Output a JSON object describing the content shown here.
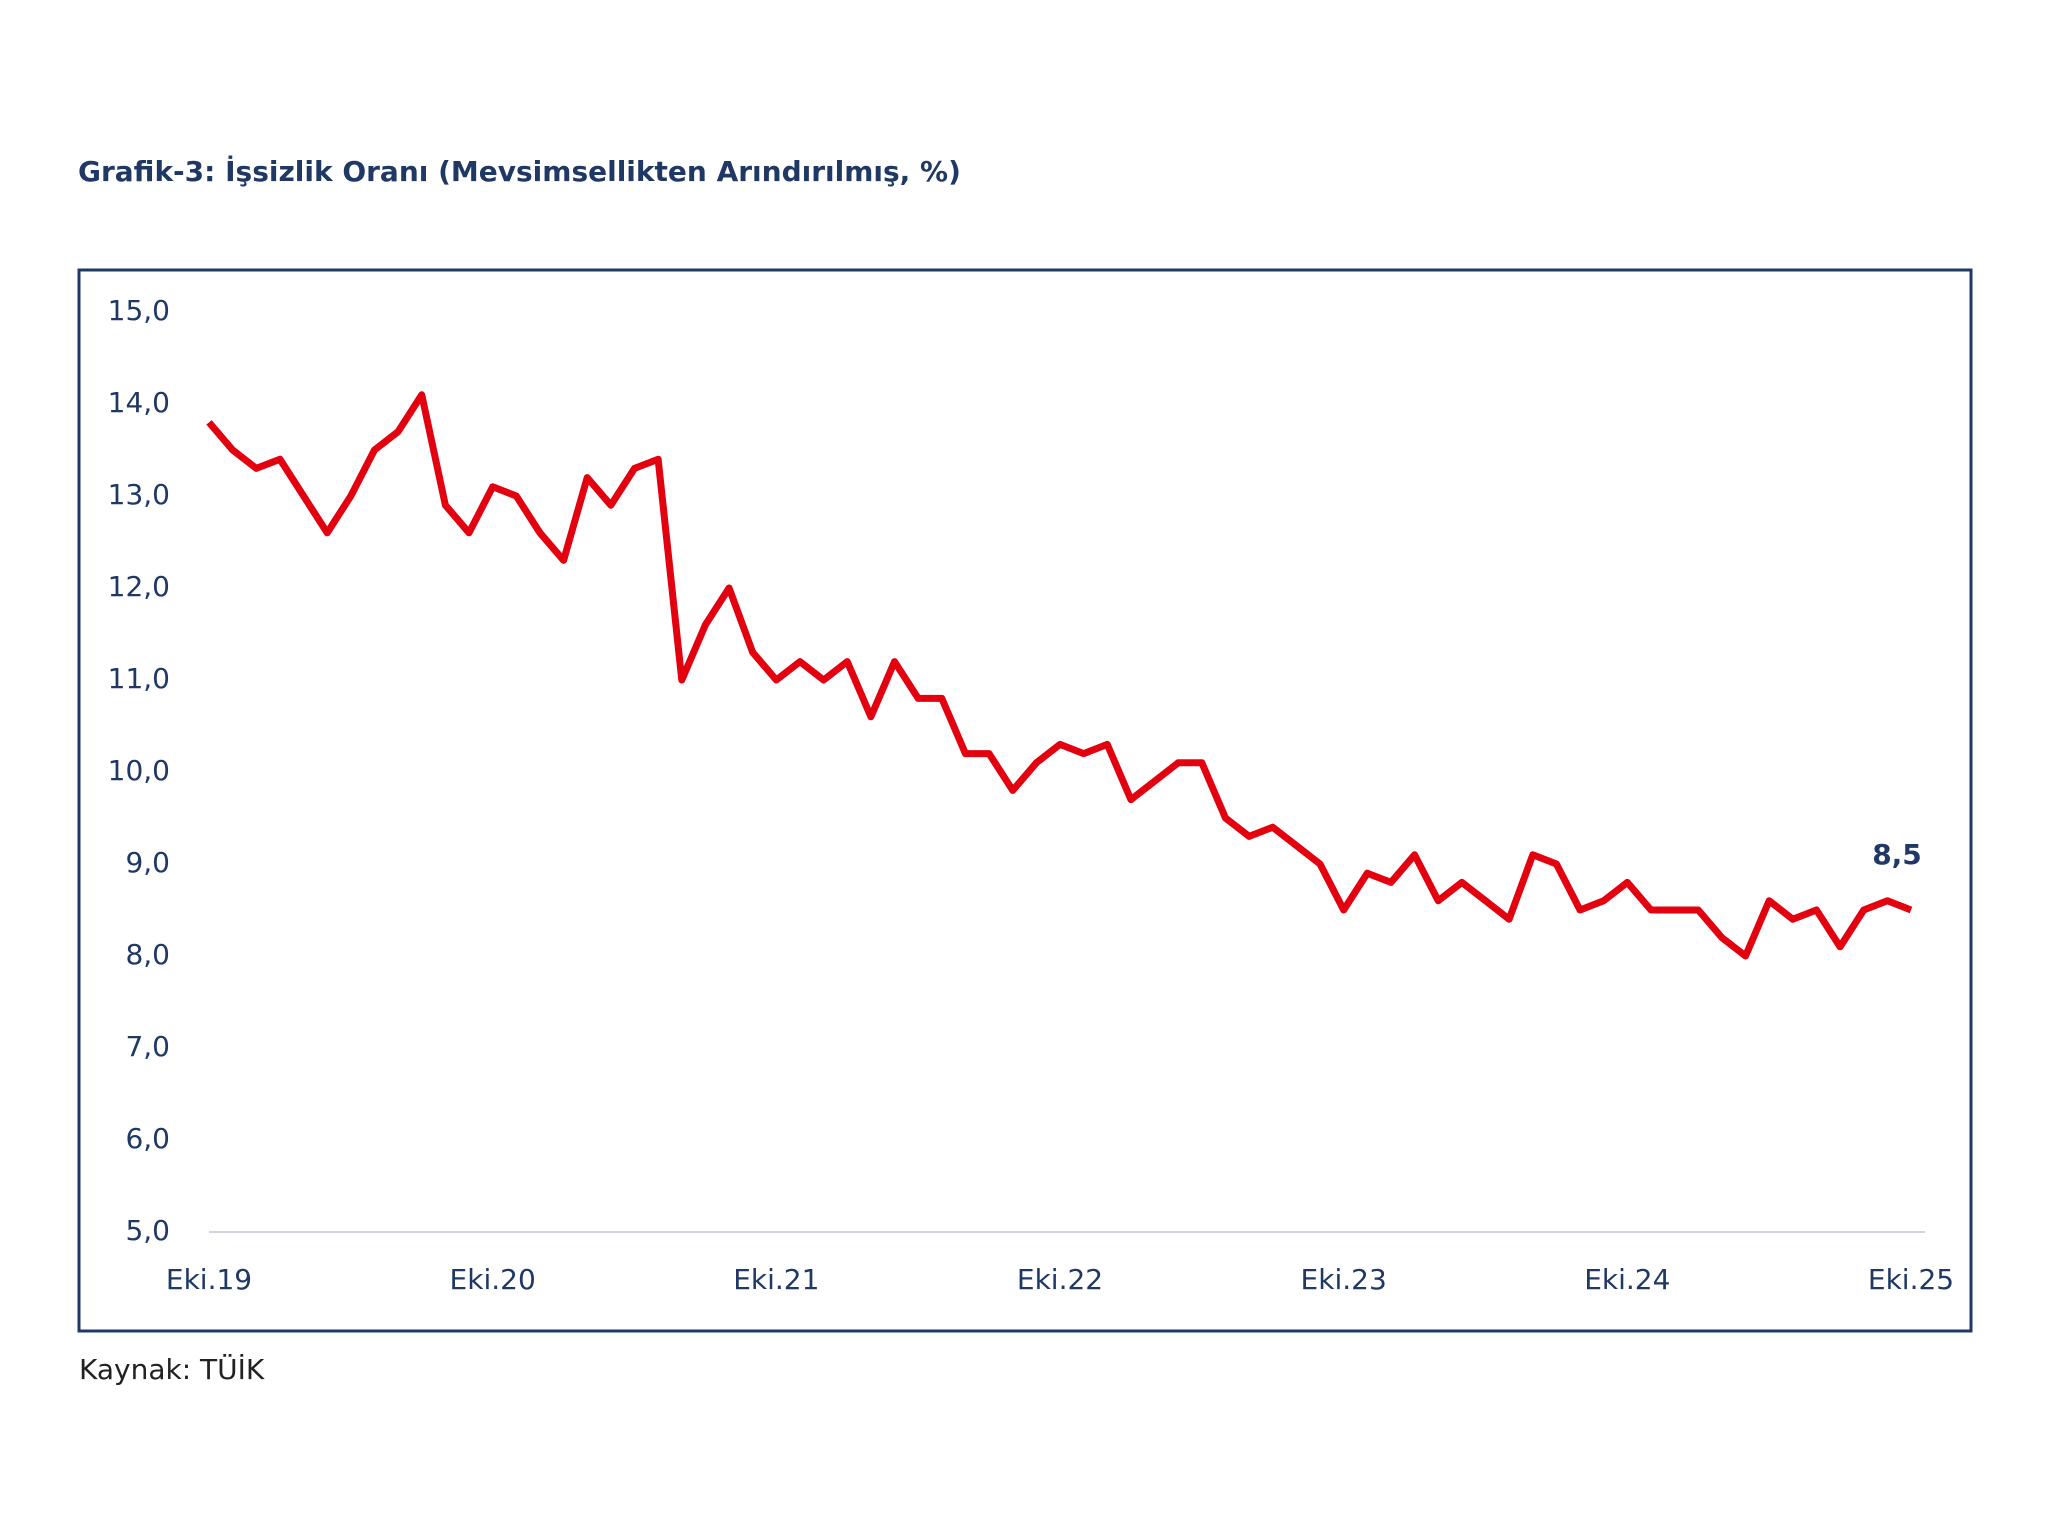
{
  "chart_data": {
    "type": "line",
    "title": "Grafik-3: İşsizlik Oranı (Mevsimsellikten Arındırılmış, %)",
    "source": "Kaynak: TÜİK",
    "categories": [
      "Eki.19",
      null,
      null,
      null,
      null,
      null,
      null,
      null,
      null,
      null,
      null,
      null,
      "Eki.20",
      null,
      null,
      null,
      null,
      null,
      null,
      null,
      null,
      null,
      null,
      null,
      "Eki.21",
      null,
      null,
      null,
      null,
      null,
      null,
      null,
      null,
      null,
      null,
      null,
      "Eki.22",
      null,
      null,
      null,
      null,
      null,
      null,
      null,
      null,
      null,
      null,
      null,
      "Eki.23",
      null,
      null,
      null,
      null,
      null,
      null,
      null,
      null,
      null,
      null,
      null,
      "Eki.24",
      null,
      null,
      null,
      null,
      null,
      null,
      null,
      null,
      null,
      null,
      null,
      "Eki.25"
    ],
    "series": [
      {
        "color": "#e3000f",
        "values": [
          13.8,
          13.5,
          13.3,
          13.4,
          13.0,
          12.6,
          13.0,
          13.5,
          13.7,
          14.1,
          12.9,
          12.6,
          13.1,
          13.0,
          12.6,
          12.3,
          13.2,
          12.9,
          13.3,
          13.4,
          11.0,
          11.6,
          12.0,
          11.3,
          11.0,
          11.2,
          11.0,
          11.2,
          10.6,
          11.2,
          10.8,
          10.8,
          10.2,
          10.2,
          9.8,
          10.1,
          10.3,
          10.2,
          10.3,
          9.7,
          9.9,
          10.1,
          10.1,
          9.5,
          9.3,
          9.4,
          9.2,
          9.0,
          8.5,
          8.9,
          8.8,
          9.1,
          8.6,
          8.8,
          8.6,
          8.4,
          9.1,
          9.0,
          8.5,
          8.6,
          8.8,
          8.5,
          8.5,
          8.5,
          8.2,
          8.0,
          8.6,
          8.4,
          8.5,
          8.1,
          8.5,
          8.6,
          8.5
        ],
        "value_labels": [
          null,
          null,
          null,
          null,
          null,
          null,
          null,
          null,
          null,
          null,
          null,
          null,
          null,
          null,
          null,
          null,
          null,
          null,
          null,
          null,
          null,
          null,
          null,
          null,
          null,
          null,
          null,
          null,
          null,
          null,
          null,
          null,
          null,
          null,
          null,
          null,
          null,
          null,
          null,
          null,
          null,
          null,
          null,
          null,
          null,
          null,
          null,
          null,
          null,
          null,
          null,
          null,
          null,
          null,
          null,
          null,
          null,
          null,
          null,
          null,
          null,
          null,
          null,
          null,
          null,
          null,
          null,
          null,
          null,
          null,
          null,
          null,
          "8,5"
        ]
      }
    ],
    "ylim": [
      5,
      15
    ],
    "yticks": [
      {
        "value": 5,
        "label": "5,0"
      },
      {
        "value": 6,
        "label": "6,0"
      },
      {
        "value": 7,
        "label": "7,0"
      },
      {
        "value": 8,
        "label": "8,0"
      },
      {
        "value": 9,
        "label": "9,0"
      },
      {
        "value": 10,
        "label": "10,0"
      },
      {
        "value": 11,
        "label": "11,0"
      },
      {
        "value": 12,
        "label": "12,0"
      },
      {
        "value": 13,
        "label": "13,0"
      },
      {
        "value": 14,
        "label": "14,0"
      },
      {
        "value": 15,
        "label": "15,0"
      }
    ]
  }
}
